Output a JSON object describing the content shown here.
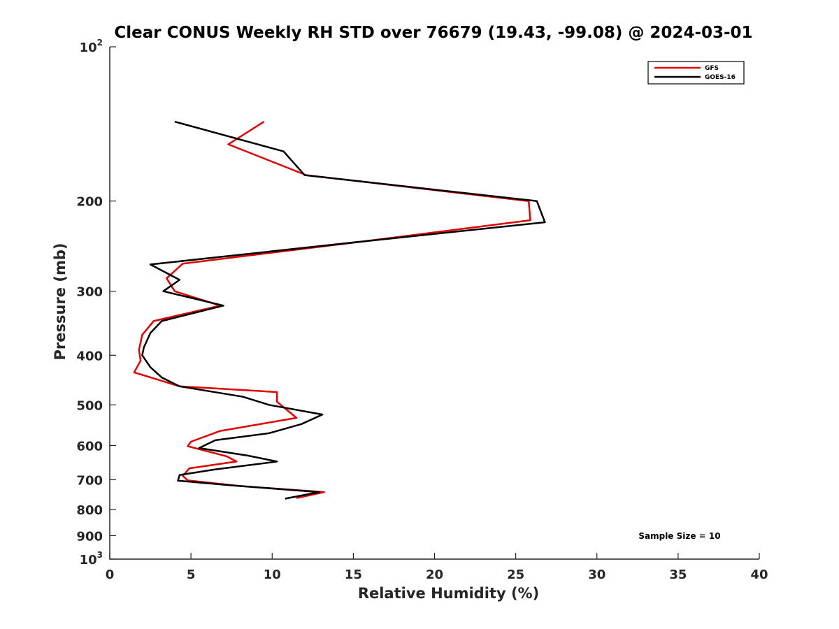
{
  "chart_data": {
    "type": "line",
    "title": "Clear CONUS Weekly RH STD over 76679 (19.43, -99.08) @ 2024-03-01",
    "xlabel": "Relative Humidity (%)",
    "ylabel": "Pressure (mb)",
    "xlim": [
      0,
      40
    ],
    "ylim": [
      100,
      1000
    ],
    "y_scale": "log",
    "y_reversed": true,
    "grid": false,
    "legend_position": "top-right",
    "x_ticks": [
      0,
      5,
      10,
      15,
      20,
      25,
      30,
      35,
      40
    ],
    "y_ticks": [
      {
        "value": 100,
        "base": "10",
        "exp": "2"
      },
      {
        "value": 200,
        "label": "200"
      },
      {
        "value": 300,
        "label": "300"
      },
      {
        "value": 400,
        "label": "400"
      },
      {
        "value": 500,
        "label": "500"
      },
      {
        "value": 600,
        "label": "600"
      },
      {
        "value": 700,
        "label": "700"
      },
      {
        "value": 800,
        "label": "800"
      },
      {
        "value": 900,
        "label": "900"
      },
      {
        "value": 1000,
        "base": "10",
        "exp": "3"
      }
    ],
    "series": [
      {
        "name": "GFS",
        "color": "#e00000",
        "points": [
          [
            9.5,
            140
          ],
          [
            7.3,
            155
          ],
          [
            12.1,
            178
          ],
          [
            25.8,
            200
          ],
          [
            25.9,
            218
          ],
          [
            15.5,
            240
          ],
          [
            4.5,
            265
          ],
          [
            3.5,
            283
          ],
          [
            4.0,
            300
          ],
          [
            6.8,
            320
          ],
          [
            2.7,
            343
          ],
          [
            2.0,
            365
          ],
          [
            1.8,
            390
          ],
          [
            1.9,
            410
          ],
          [
            1.5,
            432
          ],
          [
            4.3,
            460
          ],
          [
            10.3,
            472
          ],
          [
            10.3,
            493
          ],
          [
            11.5,
            530
          ],
          [
            6.8,
            562
          ],
          [
            5.0,
            590
          ],
          [
            4.8,
            602
          ],
          [
            7.2,
            630
          ],
          [
            7.8,
            645
          ],
          [
            4.9,
            665
          ],
          [
            4.5,
            688
          ],
          [
            4.8,
            702
          ],
          [
            8.0,
            720
          ],
          [
            13.2,
            740
          ],
          [
            11.5,
            760
          ]
        ]
      },
      {
        "name": "GOES-16",
        "color": "#000000",
        "points": [
          [
            4.0,
            140
          ],
          [
            10.7,
            160
          ],
          [
            12.0,
            178
          ],
          [
            26.3,
            200
          ],
          [
            26.8,
            220
          ],
          [
            15.5,
            240
          ],
          [
            2.5,
            266
          ],
          [
            4.3,
            285
          ],
          [
            3.3,
            300
          ],
          [
            7.0,
            320
          ],
          [
            3.2,
            343
          ],
          [
            2.5,
            362
          ],
          [
            2.1,
            386
          ],
          [
            2.0,
            400
          ],
          [
            2.5,
            422
          ],
          [
            3.2,
            442
          ],
          [
            4.3,
            460
          ],
          [
            8.2,
            482
          ],
          [
            9.8,
            500
          ],
          [
            13.1,
            522
          ],
          [
            11.8,
            545
          ],
          [
            9.8,
            568
          ],
          [
            6.5,
            586
          ],
          [
            5.5,
            607
          ],
          [
            8.5,
            628
          ],
          [
            10.3,
            645
          ],
          [
            6.5,
            668
          ],
          [
            4.3,
            685
          ],
          [
            4.2,
            703
          ],
          [
            7.5,
            718
          ],
          [
            12.9,
            740
          ],
          [
            10.8,
            762
          ]
        ]
      }
    ],
    "annotations": [
      {
        "text": "Sample Size = 10"
      }
    ]
  }
}
